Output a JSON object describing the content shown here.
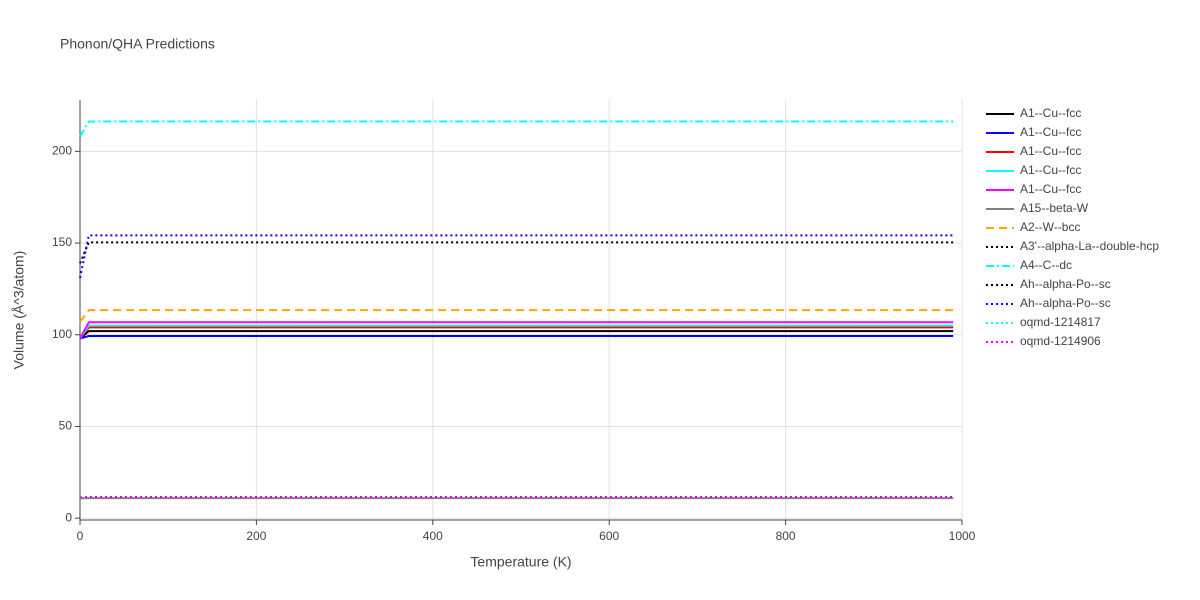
{
  "chart_data": {
    "type": "line",
    "title": "Phonon/QHA Predictions",
    "x_label": "Temperature (K)",
    "y_label": "Volume (Å^3/atom)",
    "x": [
      0,
      10,
      990
    ],
    "xlim": [
      0,
      1000
    ],
    "xticks": [
      0,
      200,
      400,
      600,
      800,
      1000
    ],
    "ylim": [
      -1,
      228
    ],
    "yticks": [
      0,
      50,
      100,
      150,
      200
    ],
    "grid": true,
    "legend": "right",
    "series": [
      {
        "name": "A1--Cu--fcc",
        "color": "#000000",
        "dash": "solid",
        "values": [
          98,
          102,
          102
        ]
      },
      {
        "name": "A1--Cu--fcc",
        "color": "#0000ff",
        "dash": "solid",
        "values": [
          98,
          99.3,
          99.3
        ]
      },
      {
        "name": "A1--Cu--fcc",
        "color": "#ff0000",
        "dash": "solid",
        "values": [
          98,
          104,
          104
        ]
      },
      {
        "name": "A1--Cu--fcc",
        "color": "#00ffff",
        "dash": "solid",
        "values": [
          98,
          105,
          105
        ]
      },
      {
        "name": "A1--Cu--fcc",
        "color": "#ff00ff",
        "dash": "solid",
        "values": [
          98,
          106.8,
          106.8
        ]
      },
      {
        "name": "A15--beta-W",
        "color": "#808080",
        "dash": "solid",
        "values": [
          10.8,
          10.9,
          10.9
        ]
      },
      {
        "name": "A2--W--bcc",
        "color": "#ffa500",
        "dash": "dash",
        "values": [
          107,
          113.4,
          113.4
        ]
      },
      {
        "name": "A3'--alpha-La--double-hcp",
        "color": "#000000",
        "dash": "dot",
        "values": [
          139,
          150.4,
          150.4
        ]
      },
      {
        "name": "A4--C--dc",
        "color": "#00ffff",
        "dash": "dashdot",
        "values": [
          208,
          216.3,
          216.3
        ]
      },
      {
        "name": "Ah--alpha-Po--sc",
        "color": "#000000",
        "dash": "dot",
        "values": [
          11.3,
          11.5,
          11.5
        ]
      },
      {
        "name": "Ah--alpha-Po--sc",
        "color": "#0000ff",
        "dash": "dot",
        "values": [
          131,
          154.2,
          154.2
        ]
      },
      {
        "name": "oqmd-1214817",
        "color": "#00ffff",
        "dash": "dot",
        "values": [
          11.1,
          11.2,
          11.2
        ]
      },
      {
        "name": "oqmd-1214906",
        "color": "#ff00ff",
        "dash": "dot",
        "values": [
          11.2,
          11.3,
          11.3
        ]
      }
    ]
  }
}
